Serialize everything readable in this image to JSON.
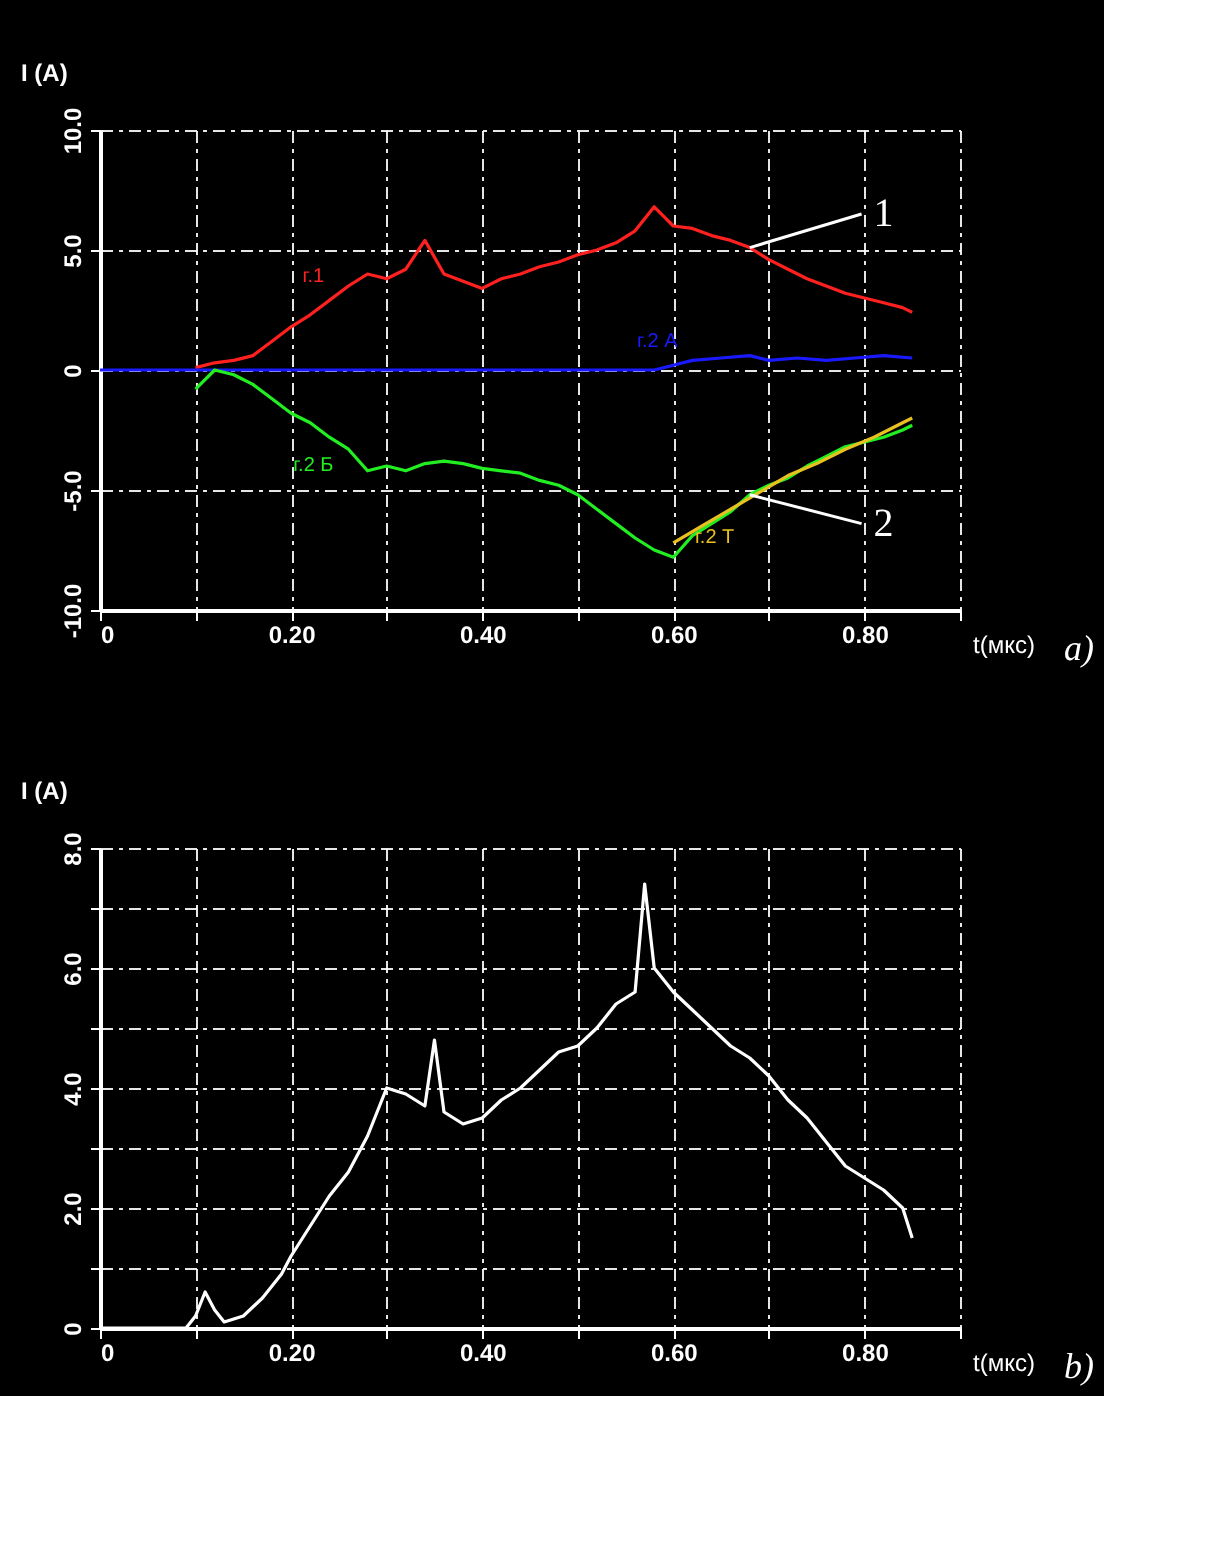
{
  "chart_data": [
    {
      "type": "line",
      "xlabel": "t(мкс)",
      "ylabel": "I (A)",
      "xlim": [
        0,
        0.9
      ],
      "ylim": [
        -10,
        10
      ],
      "xticks": [
        0,
        {
          "value": 0.1,
          "label": null
        },
        {
          "value": 0.2,
          "label": "0.20"
        },
        {
          "value": 0.3,
          "label": null
        },
        {
          "value": 0.4,
          "label": "0.40"
        },
        {
          "value": 0.5,
          "label": null
        },
        {
          "value": 0.6,
          "label": "0.60"
        },
        {
          "value": 0.7,
          "label": null
        },
        {
          "value": 0.8,
          "label": "0.80"
        },
        {
          "value": 0.9,
          "label": null
        }
      ],
      "yticks": [
        {
          "value": -10,
          "label": "-10.0"
        },
        {
          "value": -5,
          "label": "-5.0"
        },
        0,
        {
          "value": 5,
          "label": "5.0"
        },
        {
          "value": 10,
          "label": "10.0"
        }
      ],
      "grid": true,
      "marker": "none",
      "line_style": "solid",
      "x": [
        0.1,
        0.12,
        0.14,
        0.16,
        0.18,
        0.2,
        0.22,
        0.24,
        0.26,
        0.28,
        0.3,
        0.32,
        0.34,
        0.36,
        0.38,
        0.4,
        0.42,
        0.44,
        0.46,
        0.48,
        0.5,
        0.52,
        0.54,
        0.56,
        0.58,
        0.6,
        0.62,
        0.64,
        0.66,
        0.68,
        0.7,
        0.72,
        0.74,
        0.76,
        0.78,
        0.8,
        0.82,
        0.84,
        0.85
      ],
      "series": [
        {
          "name": "г.1",
          "color": "#ff2020",
          "values": [
            0.1,
            0.3,
            0.4,
            0.6,
            1.2,
            1.8,
            2.3,
            2.9,
            3.5,
            4.0,
            3.8,
            4.2,
            5.4,
            4.0,
            3.7,
            3.4,
            3.8,
            4.0,
            4.3,
            4.5,
            4.8,
            5.0,
            5.3,
            5.8,
            6.8,
            6.0,
            5.9,
            5.6,
            5.4,
            5.1,
            4.6,
            4.2,
            3.8,
            3.5,
            3.2,
            3.0,
            2.8,
            2.6,
            2.4
          ]
        },
        {
          "name": "г.2 А",
          "color": "#1a1aff",
          "x": [
            0,
            0.58,
            0.6,
            0.62,
            0.65,
            0.68,
            0.7,
            0.73,
            0.76,
            0.79,
            0.82,
            0.85
          ],
          "values": [
            0,
            0,
            0.2,
            0.4,
            0.5,
            0.6,
            0.4,
            0.5,
            0.4,
            0.5,
            0.6,
            0.5
          ]
        },
        {
          "name": "г.2 Б",
          "color": "#22ee22",
          "values": [
            -0.8,
            0.0,
            -0.2,
            -0.6,
            -1.2,
            -1.8,
            -2.2,
            -2.8,
            -3.3,
            -4.2,
            -4.0,
            -4.2,
            -3.9,
            -3.8,
            -3.9,
            -4.1,
            -4.2,
            -4.3,
            -4.6,
            -4.8,
            -5.2,
            -5.8,
            -6.4,
            -7.0,
            -7.5,
            -7.8,
            -6.9,
            -6.4,
            -5.9,
            -5.2,
            -4.8,
            -4.5,
            -4.0,
            -3.6,
            -3.2,
            -3.0,
            -2.8,
            -2.5,
            -2.3
          ]
        },
        {
          "name": "г.2 Т",
          "color": "#e8c020",
          "x": [
            0.6,
            0.63,
            0.66,
            0.69,
            0.72,
            0.75,
            0.78,
            0.81,
            0.84,
            0.85
          ],
          "values": [
            -7.2,
            -6.5,
            -5.8,
            -5.1,
            -4.4,
            -3.9,
            -3.3,
            -2.8,
            -2.2,
            -2.0
          ]
        }
      ],
      "annotations": [
        {
          "text": "1",
          "x": 0.68,
          "y": 5.1
        },
        {
          "text": "2",
          "x": 0.68,
          "y": -5.2
        },
        "a)"
      ]
    },
    {
      "type": "line",
      "xlabel": "t(мкс)",
      "ylabel": "I (A)",
      "xlim": [
        0,
        0.9
      ],
      "ylim": [
        0,
        8
      ],
      "xticks": [
        0,
        {
          "value": 0.1,
          "label": null
        },
        {
          "value": 0.2,
          "label": "0.20"
        },
        {
          "value": 0.3,
          "label": null
        },
        {
          "value": 0.4,
          "label": "0.40"
        },
        {
          "value": 0.5,
          "label": null
        },
        {
          "value": 0.6,
          "label": "0.60"
        },
        {
          "value": 0.7,
          "label": null
        },
        {
          "value": 0.8,
          "label": "0.80"
        },
        {
          "value": 0.9,
          "label": null
        }
      ],
      "yticks": [
        0,
        {
          "value": 1,
          "label": null
        },
        {
          "value": 2,
          "label": "2.0"
        },
        {
          "value": 3,
          "label": null
        },
        {
          "value": 4,
          "label": "4.0"
        },
        {
          "value": 5,
          "label": null
        },
        {
          "value": 6,
          "label": "6.0"
        },
        {
          "value": 7,
          "label": null
        },
        {
          "value": 8,
          "label": "8.0"
        }
      ],
      "grid": true,
      "marker": "none",
      "line_style": "solid",
      "x": [
        0,
        0.09,
        0.1,
        0.11,
        0.12,
        0.13,
        0.15,
        0.17,
        0.19,
        0.2,
        0.22,
        0.24,
        0.26,
        0.28,
        0.3,
        0.32,
        0.34,
        0.35,
        0.36,
        0.38,
        0.4,
        0.42,
        0.44,
        0.46,
        0.48,
        0.5,
        0.52,
        0.54,
        0.56,
        0.57,
        0.58,
        0.6,
        0.62,
        0.64,
        0.66,
        0.68,
        0.7,
        0.72,
        0.74,
        0.76,
        0.78,
        0.8,
        0.82,
        0.84,
        0.85
      ],
      "series": [
        {
          "color": "#ffffff",
          "values": [
            0,
            0,
            0.2,
            0.6,
            0.3,
            0.1,
            0.2,
            0.5,
            0.9,
            1.2,
            1.7,
            2.2,
            2.6,
            3.2,
            4.0,
            3.9,
            3.7,
            4.8,
            3.6,
            3.4,
            3.5,
            3.8,
            4.0,
            4.3,
            4.6,
            4.7,
            5.0,
            5.4,
            5.6,
            7.4,
            6.0,
            5.6,
            5.3,
            5.0,
            4.7,
            4.5,
            4.2,
            3.8,
            3.5,
            3.1,
            2.7,
            2.5,
            2.3,
            2.0,
            1.5
          ]
        }
      ],
      "annotations": [
        "b)"
      ]
    }
  ]
}
